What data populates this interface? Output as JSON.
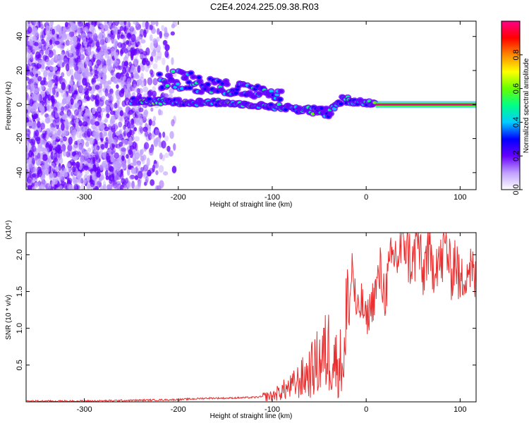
{
  "title": "C2E4.2024.225.09.38.R03",
  "chart_data": [
    {
      "type": "heatmap",
      "xlabel": "Height of straight line (km)",
      "ylabel": "Frequency (Hz)",
      "xlim": [
        -362,
        117
      ],
      "ylim": [
        -50,
        49
      ],
      "xticks": [
        -300,
        -200,
        -100,
        0,
        100
      ],
      "yticks": [
        -40,
        -20,
        0,
        20,
        40
      ],
      "colorbar": {
        "label": "Normalized spectral amplitude",
        "range": [
          0,
          1
        ],
        "ticks": [
          0.0,
          0.2,
          0.4,
          0.6,
          0.8
        ],
        "colors": [
          "#ffffff",
          "#c0a0ff",
          "#6600ff",
          "#0000ff",
          "#00ccff",
          "#00ff88",
          "#66ff00",
          "#ffff00",
          "#ff8800",
          "#ff0000",
          "#ff0088"
        ]
      },
      "features": [
        {
          "name": "",
          "x_range": [
            -362,
            -200
          ],
          "y_range": [
            -50,
            49
          ],
          "level": 0.1
        },
        {
          "name": "",
          "x_range": [
            -250,
            10
          ],
          "y_center_at_x": [
            [
              -250,
              2
            ],
            [
              -150,
              1
            ],
            [
              -80,
              -2
            ],
            [
              -40,
              -5
            ],
            [
              -25,
              3
            ],
            [
              0,
              1
            ]
          ],
          "level": 0.4
        },
        {
          "name": "",
          "x_range": [
            -220,
            -90
          ],
          "y_center_at_x": [
            [
              -220,
              15
            ],
            [
              -190,
              14
            ],
            [
              -150,
              10
            ],
            [
              -100,
              6
            ]
          ],
          "level": 0.35
        },
        {
          "name": "",
          "x_range": [
            10,
            117
          ],
          "y": 0,
          "level": 0.95
        }
      ]
    },
    {
      "type": "line",
      "xlabel": "Height of straight line (km)",
      "ylabel": "SNR (10 * v/v)",
      "y_multiplier": "(x10⁴)",
      "xlim": [
        -362,
        117
      ],
      "ylim": [
        0,
        2.3
      ],
      "xticks": [
        -300,
        -200,
        -100,
        0,
        100
      ],
      "yticks": [
        0.5,
        1.0,
        1.5,
        2.0
      ],
      "ytick_labels": [
        "0.5",
        "1.0",
        "1.5",
        "2.0"
      ],
      "line_color": "#e83030",
      "series": [
        {
          "x": [
            -362,
            -300,
            -250,
            -200,
            -170,
            -150,
            -120,
            -100,
            -90,
            -80,
            -70,
            -60,
            -50,
            -40,
            -30,
            -22,
            -20,
            -18,
            -15,
            -10,
            -5,
            0,
            5,
            10,
            15,
            20,
            25,
            30,
            35,
            40,
            45,
            50,
            55,
            60,
            65,
            70,
            75,
            80,
            85,
            90,
            95,
            100,
            105,
            110,
            117
          ],
          "values": [
            0.01,
            0.01,
            0.02,
            0.03,
            0.05,
            0.05,
            0.06,
            0.08,
            0.15,
            0.2,
            0.3,
            0.4,
            0.55,
            0.7,
            0.5,
            0.65,
            1.6,
            1.2,
            1.9,
            1.15,
            1.35,
            1.1,
            1.3,
            1.5,
            1.75,
            1.45,
            1.8,
            2.0,
            1.95,
            2.3,
            2.0,
            1.85,
            2.25,
            1.65,
            2.1,
            1.8,
            2.0,
            1.85,
            2.2,
            1.7,
            2.0,
            1.55,
            1.8,
            1.85,
            1.6
          ]
        }
      ]
    }
  ]
}
